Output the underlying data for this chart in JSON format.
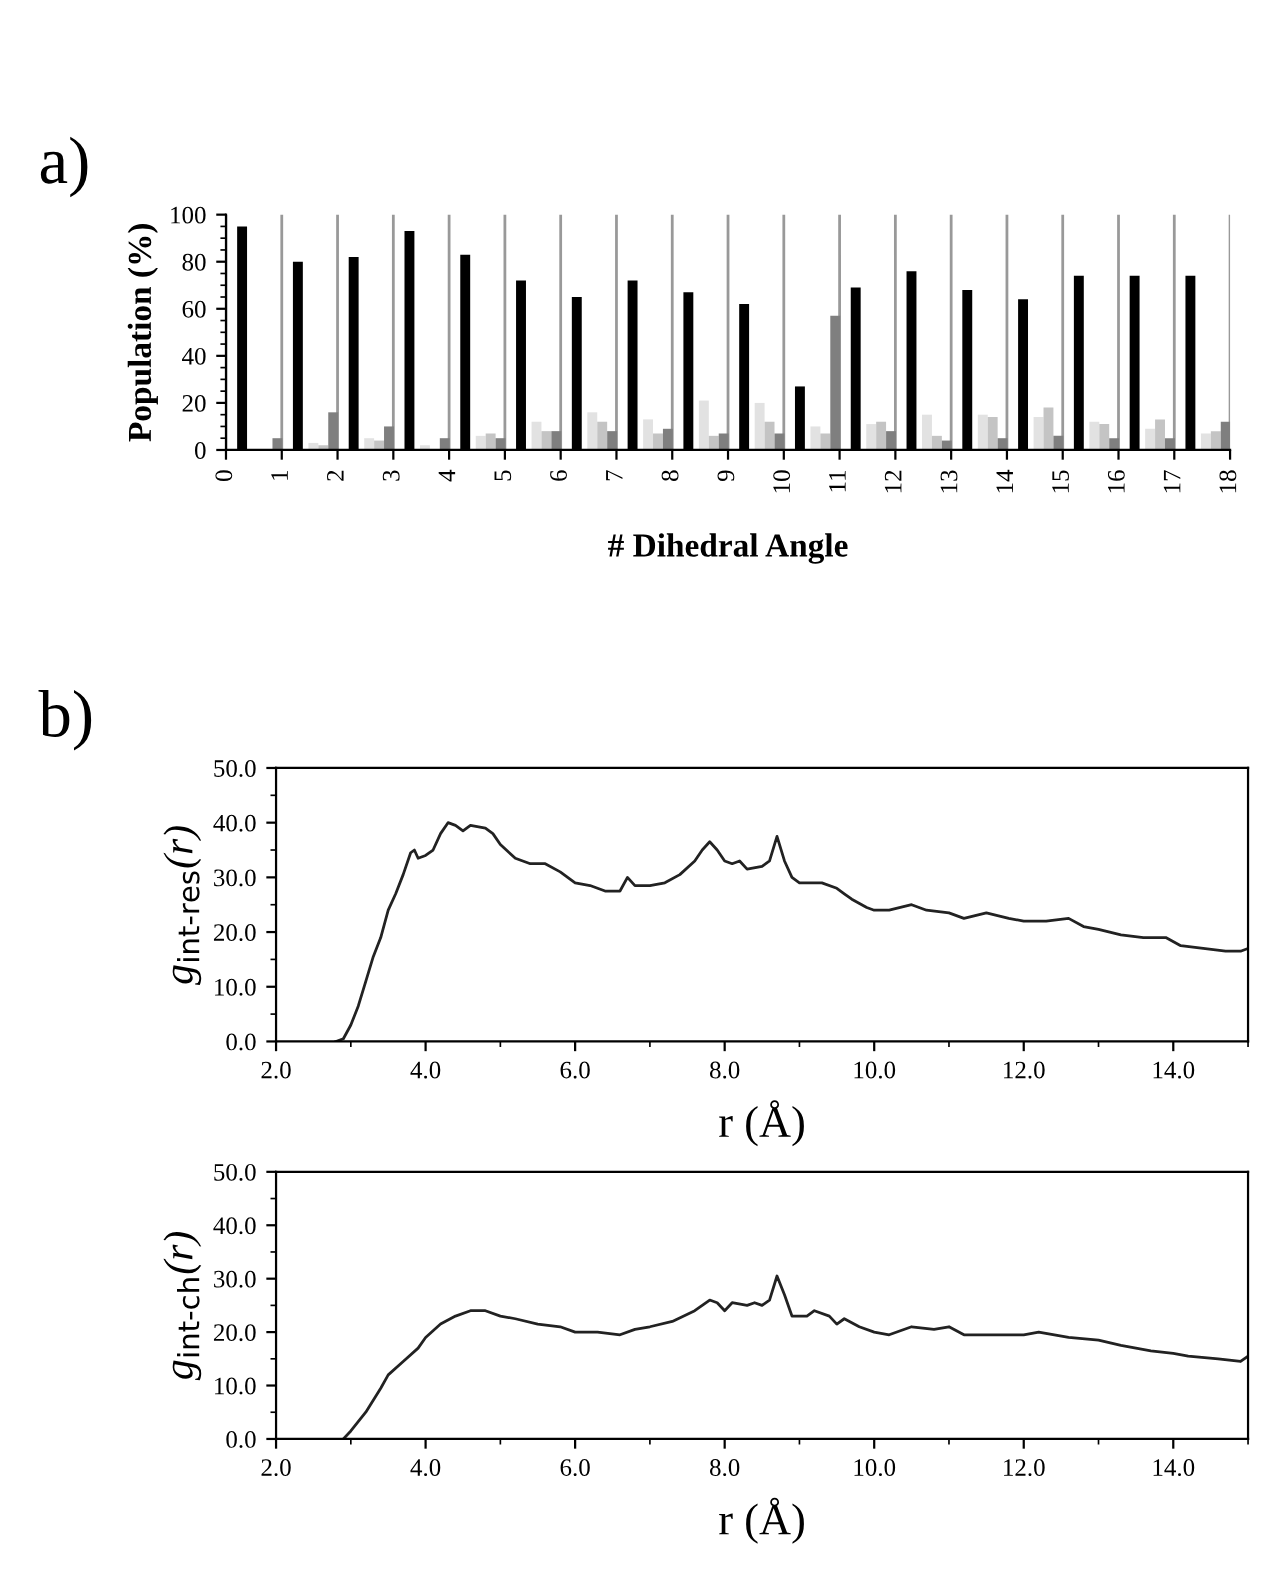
{
  "chart_data": [
    {
      "type": "bar",
      "annotations": [
        "a)"
      ],
      "xlabel": "# Dihedral Angle",
      "ylabel": "Population (%)",
      "x": [
        0.5,
        1.5,
        2.5,
        3.5,
        4.5,
        5.5,
        6.5,
        7.5,
        8.5,
        9.5,
        10.5,
        11.5,
        12.5,
        13.5,
        14.5,
        15.5,
        16.5,
        17.5
      ],
      "series": [
        {
          "color": "#000000",
          "values": [
            95,
            80,
            82,
            93,
            83,
            72,
            65,
            72,
            67,
            62,
            27,
            69,
            76,
            68,
            64,
            74,
            74,
            74
          ]
        },
        {
          "color": "#e2e2e2",
          "values": [
            0,
            3,
            5,
            2,
            6,
            12,
            16,
            13,
            21,
            20,
            10,
            11,
            15,
            15,
            14,
            12,
            9,
            7
          ]
        },
        {
          "color": "#c4c4c4",
          "values": [
            0,
            2,
            4,
            null,
            7,
            8,
            12,
            7,
            6,
            12,
            7,
            12,
            6,
            14,
            18,
            11,
            13,
            8
          ]
        },
        {
          "color": "#7f7f7f",
          "values": [
            5,
            16,
            10,
            5,
            5,
            8,
            8,
            9,
            7,
            7,
            57,
            8,
            4,
            5,
            6,
            5,
            5,
            12
          ]
        }
      ],
      "xlim": [
        0,
        18
      ],
      "xticks": [
        0,
        1,
        2,
        3,
        4,
        5,
        6,
        7,
        8,
        9,
        10,
        11,
        12,
        13,
        14,
        15,
        16,
        17,
        18
      ],
      "ylim": [
        0,
        100
      ],
      "yticks": [
        0,
        20,
        40,
        60,
        80,
        100
      ],
      "grid": "x"
    },
    {
      "type": "line",
      "annotations": [
        "b)"
      ],
      "xlabel": "r (Å)",
      "ylabel": "g$_{int-res}$(r)",
      "series": [
        {
          "color": "#222222",
          "x": [
            2.8,
            2.9,
            3.0,
            3.1,
            3.2,
            3.3,
            3.4,
            3.5,
            3.6,
            3.7,
            3.8,
            3.85,
            3.9,
            4.0,
            4.1,
            4.2,
            4.3,
            4.4,
            4.5,
            4.6,
            4.8,
            4.9,
            5.0,
            5.2,
            5.4,
            5.6,
            5.8,
            6.0,
            6.2,
            6.4,
            6.6,
            6.7,
            6.8,
            7.0,
            7.2,
            7.4,
            7.6,
            7.7,
            7.8,
            7.9,
            8.0,
            8.1,
            8.2,
            8.3,
            8.5,
            8.6,
            8.7,
            8.8,
            8.9,
            9.0,
            9.3,
            9.5,
            9.6,
            9.7,
            9.9,
            10.0,
            10.2,
            10.5,
            10.7,
            11.0,
            11.2,
            11.5,
            11.8,
            12.0,
            12.3,
            12.6,
            12.8,
            13.0,
            13.3,
            13.6,
            13.9,
            14.1,
            14.4,
            14.7,
            14.9,
            15.0
          ],
          "values": [
            0,
            0.5,
            3,
            6.5,
            11,
            15.5,
            19,
            24,
            27,
            30.5,
            34.5,
            35,
            33.5,
            34,
            35,
            38,
            40,
            39.5,
            38.5,
            39.5,
            39,
            38,
            36,
            33.5,
            32.5,
            32.5,
            31,
            29,
            28.5,
            27.5,
            27.5,
            30,
            28.5,
            28.5,
            29,
            30.5,
            33,
            35,
            36.5,
            35,
            33,
            32.5,
            33,
            31.5,
            32,
            33,
            37.5,
            33,
            30,
            29,
            29,
            28,
            27,
            26,
            24.5,
            24,
            24,
            25,
            24,
            23.5,
            22.5,
            23.5,
            22.5,
            22,
            22,
            22.5,
            21,
            20.5,
            19.5,
            19,
            19,
            17.5,
            17,
            16.5,
            16.5,
            17
          ]
        }
      ],
      "xlim": [
        2,
        15
      ],
      "xticks": [
        {
          "value": 2,
          "label": "2.0"
        },
        {
          "value": 4,
          "label": "4.0"
        },
        {
          "value": 6,
          "label": "6.0"
        },
        {
          "value": 8,
          "label": "8.0"
        },
        {
          "value": 10,
          "label": "10.0"
        },
        {
          "value": 12,
          "label": "12.0"
        },
        {
          "value": 14,
          "label": "14.0"
        }
      ],
      "ylim": [
        0,
        50
      ],
      "yticks": [
        {
          "value": 0,
          "label": "0.0"
        },
        {
          "value": 10,
          "label": "10.0"
        },
        {
          "value": 20,
          "label": "20.0"
        },
        {
          "value": 30,
          "label": "30.0"
        },
        {
          "value": 40,
          "label": "40.0"
        },
        {
          "value": 50,
          "label": "50.0"
        }
      ],
      "grid": false
    },
    {
      "type": "line",
      "xlabel": "r (Å)",
      "ylabel": "g$_{int-ch}$(r)",
      "series": [
        {
          "color": "#222222",
          "x": [
            2.9,
            3.0,
            3.2,
            3.4,
            3.5,
            3.7,
            3.9,
            4.0,
            4.2,
            4.4,
            4.6,
            4.8,
            5.0,
            5.2,
            5.5,
            5.8,
            6.0,
            6.3,
            6.6,
            6.8,
            7.0,
            7.3,
            7.6,
            7.8,
            7.9,
            8.0,
            8.1,
            8.3,
            8.4,
            8.5,
            8.6,
            8.7,
            8.8,
            8.9,
            9.1,
            9.2,
            9.4,
            9.5,
            9.6,
            9.8,
            10.0,
            10.2,
            10.5,
            10.8,
            11.0,
            11.2,
            11.6,
            12.0,
            12.2,
            12.6,
            13.0,
            13.3,
            13.7,
            14.0,
            14.2,
            14.6,
            14.9,
            15.0
          ],
          "values": [
            0,
            1.5,
            5,
            9.5,
            12,
            14.5,
            17,
            19,
            21.5,
            23,
            24,
            24,
            23,
            22.5,
            21.5,
            21,
            20,
            20,
            19.5,
            20.5,
            21,
            22,
            24,
            26,
            25.5,
            24,
            25.5,
            25,
            25.5,
            25,
            26,
            30.5,
            27,
            23,
            23,
            24,
            23,
            21.5,
            22.5,
            21,
            20,
            19.5,
            21,
            20.5,
            21,
            19.5,
            19.5,
            19.5,
            20,
            19,
            18.5,
            17.5,
            16.5,
            16,
            15.5,
            15,
            14.5,
            15.5
          ]
        }
      ],
      "xlim": [
        2,
        15
      ],
      "xticks": [
        {
          "value": 2,
          "label": "2.0"
        },
        {
          "value": 4,
          "label": "4.0"
        },
        {
          "value": 6,
          "label": "6.0"
        },
        {
          "value": 8,
          "label": "8.0"
        },
        {
          "value": 10,
          "label": "10.0"
        },
        {
          "value": 12,
          "label": "12.0"
        },
        {
          "value": 14,
          "label": "14.0"
        }
      ],
      "ylim": [
        0,
        50
      ],
      "yticks": [
        {
          "value": 0,
          "label": "0.0"
        },
        {
          "value": 10,
          "label": "10.0"
        },
        {
          "value": 20,
          "label": "20.0"
        },
        {
          "value": 30,
          "label": "30.0"
        },
        {
          "value": 40,
          "label": "40.0"
        },
        {
          "value": 50,
          "label": "50.0"
        }
      ],
      "grid": false
    }
  ]
}
